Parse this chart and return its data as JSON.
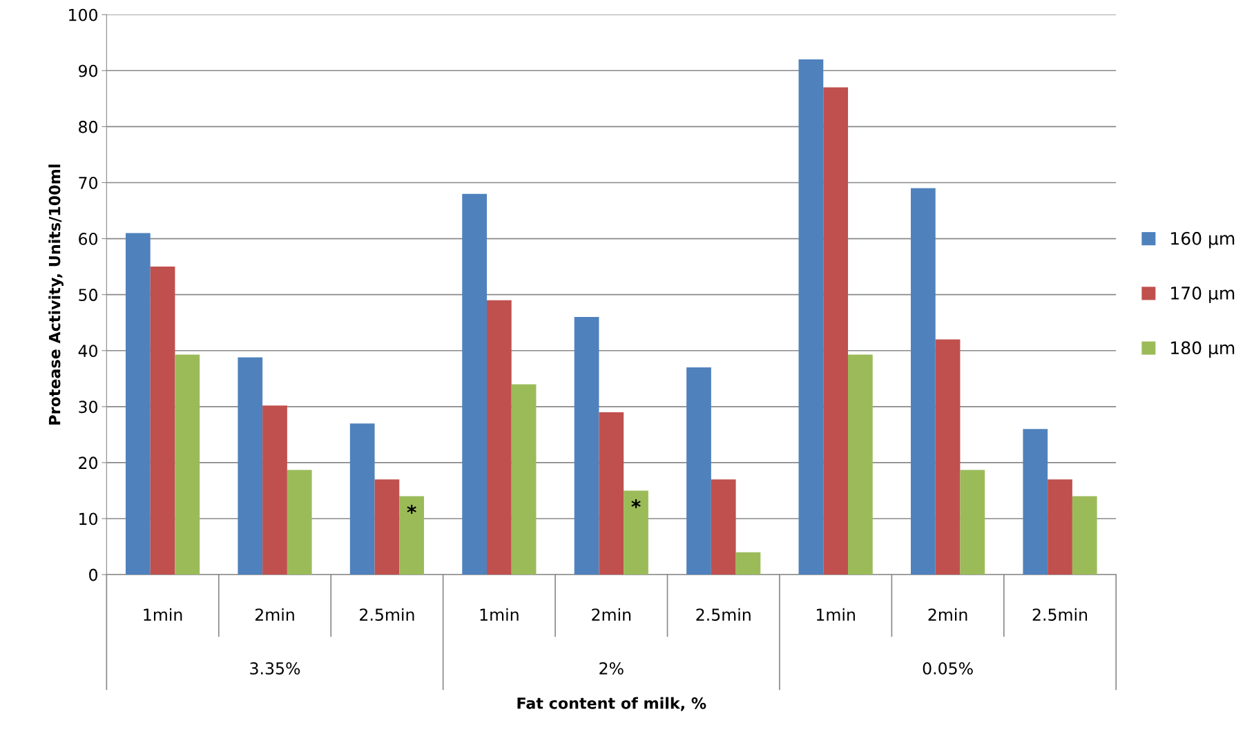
{
  "chart_data": {
    "type": "bar",
    "xlabel": "Fat content of milk, %",
    "ylabel": "Protease Activity, Units/100ml",
    "categories": [
      "1min",
      "2min",
      "2.5min",
      "1min",
      "2min",
      "2.5min",
      "1min",
      "2min",
      "2.5min"
    ],
    "series": [
      {
        "name": "160 µm",
        "color": "#4f81bd",
        "values": [
          61,
          38.8,
          27,
          68,
          46,
          37,
          92,
          69,
          26
        ]
      },
      {
        "name": "170 µm",
        "color": "#c0504d",
        "values": [
          55,
          30.2,
          17,
          49,
          29,
          17,
          87,
          42,
          17
        ]
      },
      {
        "name": "180 µm",
        "color": "#9bbb59",
        "values": [
          39.3,
          18.7,
          14,
          34,
          15,
          4,
          39.3,
          18.7,
          14
        ],
        "value_labels": [
          null,
          null,
          "*",
          null,
          "*",
          null,
          null,
          null,
          null
        ]
      }
    ],
    "annotations": [
      "3.35%",
      "2%",
      "0.05%"
    ],
    "ylim": [
      0,
      100
    ],
    "yticks": [
      0,
      10,
      20,
      30,
      40,
      50,
      60,
      70,
      80,
      90,
      100
    ],
    "grid": "y",
    "legend": "right"
  }
}
